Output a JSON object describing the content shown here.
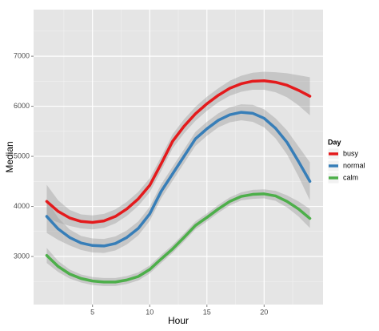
{
  "chart_data": {
    "type": "line",
    "xlabel": "Hour",
    "ylabel": "Median",
    "legend_title": "Day",
    "legend": "right",
    "grid": true,
    "x": [
      1,
      2,
      3,
      4,
      5,
      6,
      7,
      8,
      9,
      10,
      11,
      12,
      13,
      14,
      15,
      16,
      17,
      18,
      19,
      20,
      21,
      22,
      23,
      24
    ],
    "xlim": [
      -0.15,
      25.15
    ],
    "xticks": [
      5,
      10,
      15,
      20
    ],
    "ylim": [
      2040,
      7930
    ],
    "yticks": [
      3000,
      4000,
      5000,
      6000,
      7000
    ],
    "series": [
      {
        "name": "busy",
        "color": "#e41a1c",
        "values": [
          4100,
          3900,
          3770,
          3700,
          3680,
          3710,
          3800,
          3950,
          4150,
          4420,
          4850,
          5300,
          5600,
          5850,
          6050,
          6220,
          6360,
          6450,
          6500,
          6510,
          6480,
          6420,
          6320,
          6200
        ],
        "lower": [
          3770,
          3680,
          3610,
          3560,
          3540,
          3570,
          3660,
          3810,
          4010,
          4280,
          4710,
          5160,
          5460,
          5710,
          5910,
          6080,
          6210,
          6290,
          6330,
          6330,
          6280,
          6180,
          6020,
          5820
        ],
        "upper": [
          4430,
          4120,
          3930,
          3840,
          3820,
          3850,
          3940,
          4090,
          4290,
          4560,
          4990,
          5440,
          5740,
          5990,
          6190,
          6360,
          6510,
          6610,
          6670,
          6690,
          6680,
          6660,
          6620,
          6580
        ]
      },
      {
        "name": "normal",
        "color": "#377eb8",
        "values": [
          3800,
          3550,
          3380,
          3270,
          3220,
          3210,
          3260,
          3380,
          3560,
          3850,
          4300,
          4650,
          5000,
          5350,
          5550,
          5720,
          5830,
          5880,
          5860,
          5760,
          5560,
          5280,
          4900,
          4500
        ],
        "lower": [
          3470,
          3330,
          3220,
          3130,
          3080,
          3070,
          3120,
          3240,
          3420,
          3710,
          4160,
          4510,
          4860,
          5210,
          5410,
          5580,
          5680,
          5720,
          5690,
          5580,
          5360,
          5040,
          4600,
          4120
        ],
        "upper": [
          4130,
          3770,
          3540,
          3410,
          3360,
          3350,
          3400,
          3520,
          3700,
          3990,
          4440,
          4790,
          5140,
          5490,
          5690,
          5860,
          5980,
          6040,
          6030,
          5940,
          5760,
          5520,
          5200,
          4880
        ]
      },
      {
        "name": "calm",
        "color": "#4daf4a",
        "values": [
          3020,
          2800,
          2650,
          2560,
          2510,
          2490,
          2490,
          2530,
          2600,
          2740,
          2950,
          3150,
          3380,
          3620,
          3780,
          3950,
          4100,
          4200,
          4240,
          4250,
          4210,
          4100,
          3950,
          3760
        ],
        "lower": [
          2870,
          2690,
          2560,
          2480,
          2430,
          2410,
          2410,
          2450,
          2520,
          2660,
          2870,
          3070,
          3300,
          3540,
          3700,
          3870,
          4020,
          4120,
          4150,
          4160,
          4110,
          3980,
          3800,
          3570
        ],
        "upper": [
          3170,
          2910,
          2740,
          2640,
          2590,
          2570,
          2570,
          2610,
          2680,
          2820,
          3030,
          3230,
          3460,
          3700,
          3860,
          4030,
          4180,
          4280,
          4330,
          4340,
          4310,
          4220,
          4100,
          3950
        ]
      }
    ]
  }
}
